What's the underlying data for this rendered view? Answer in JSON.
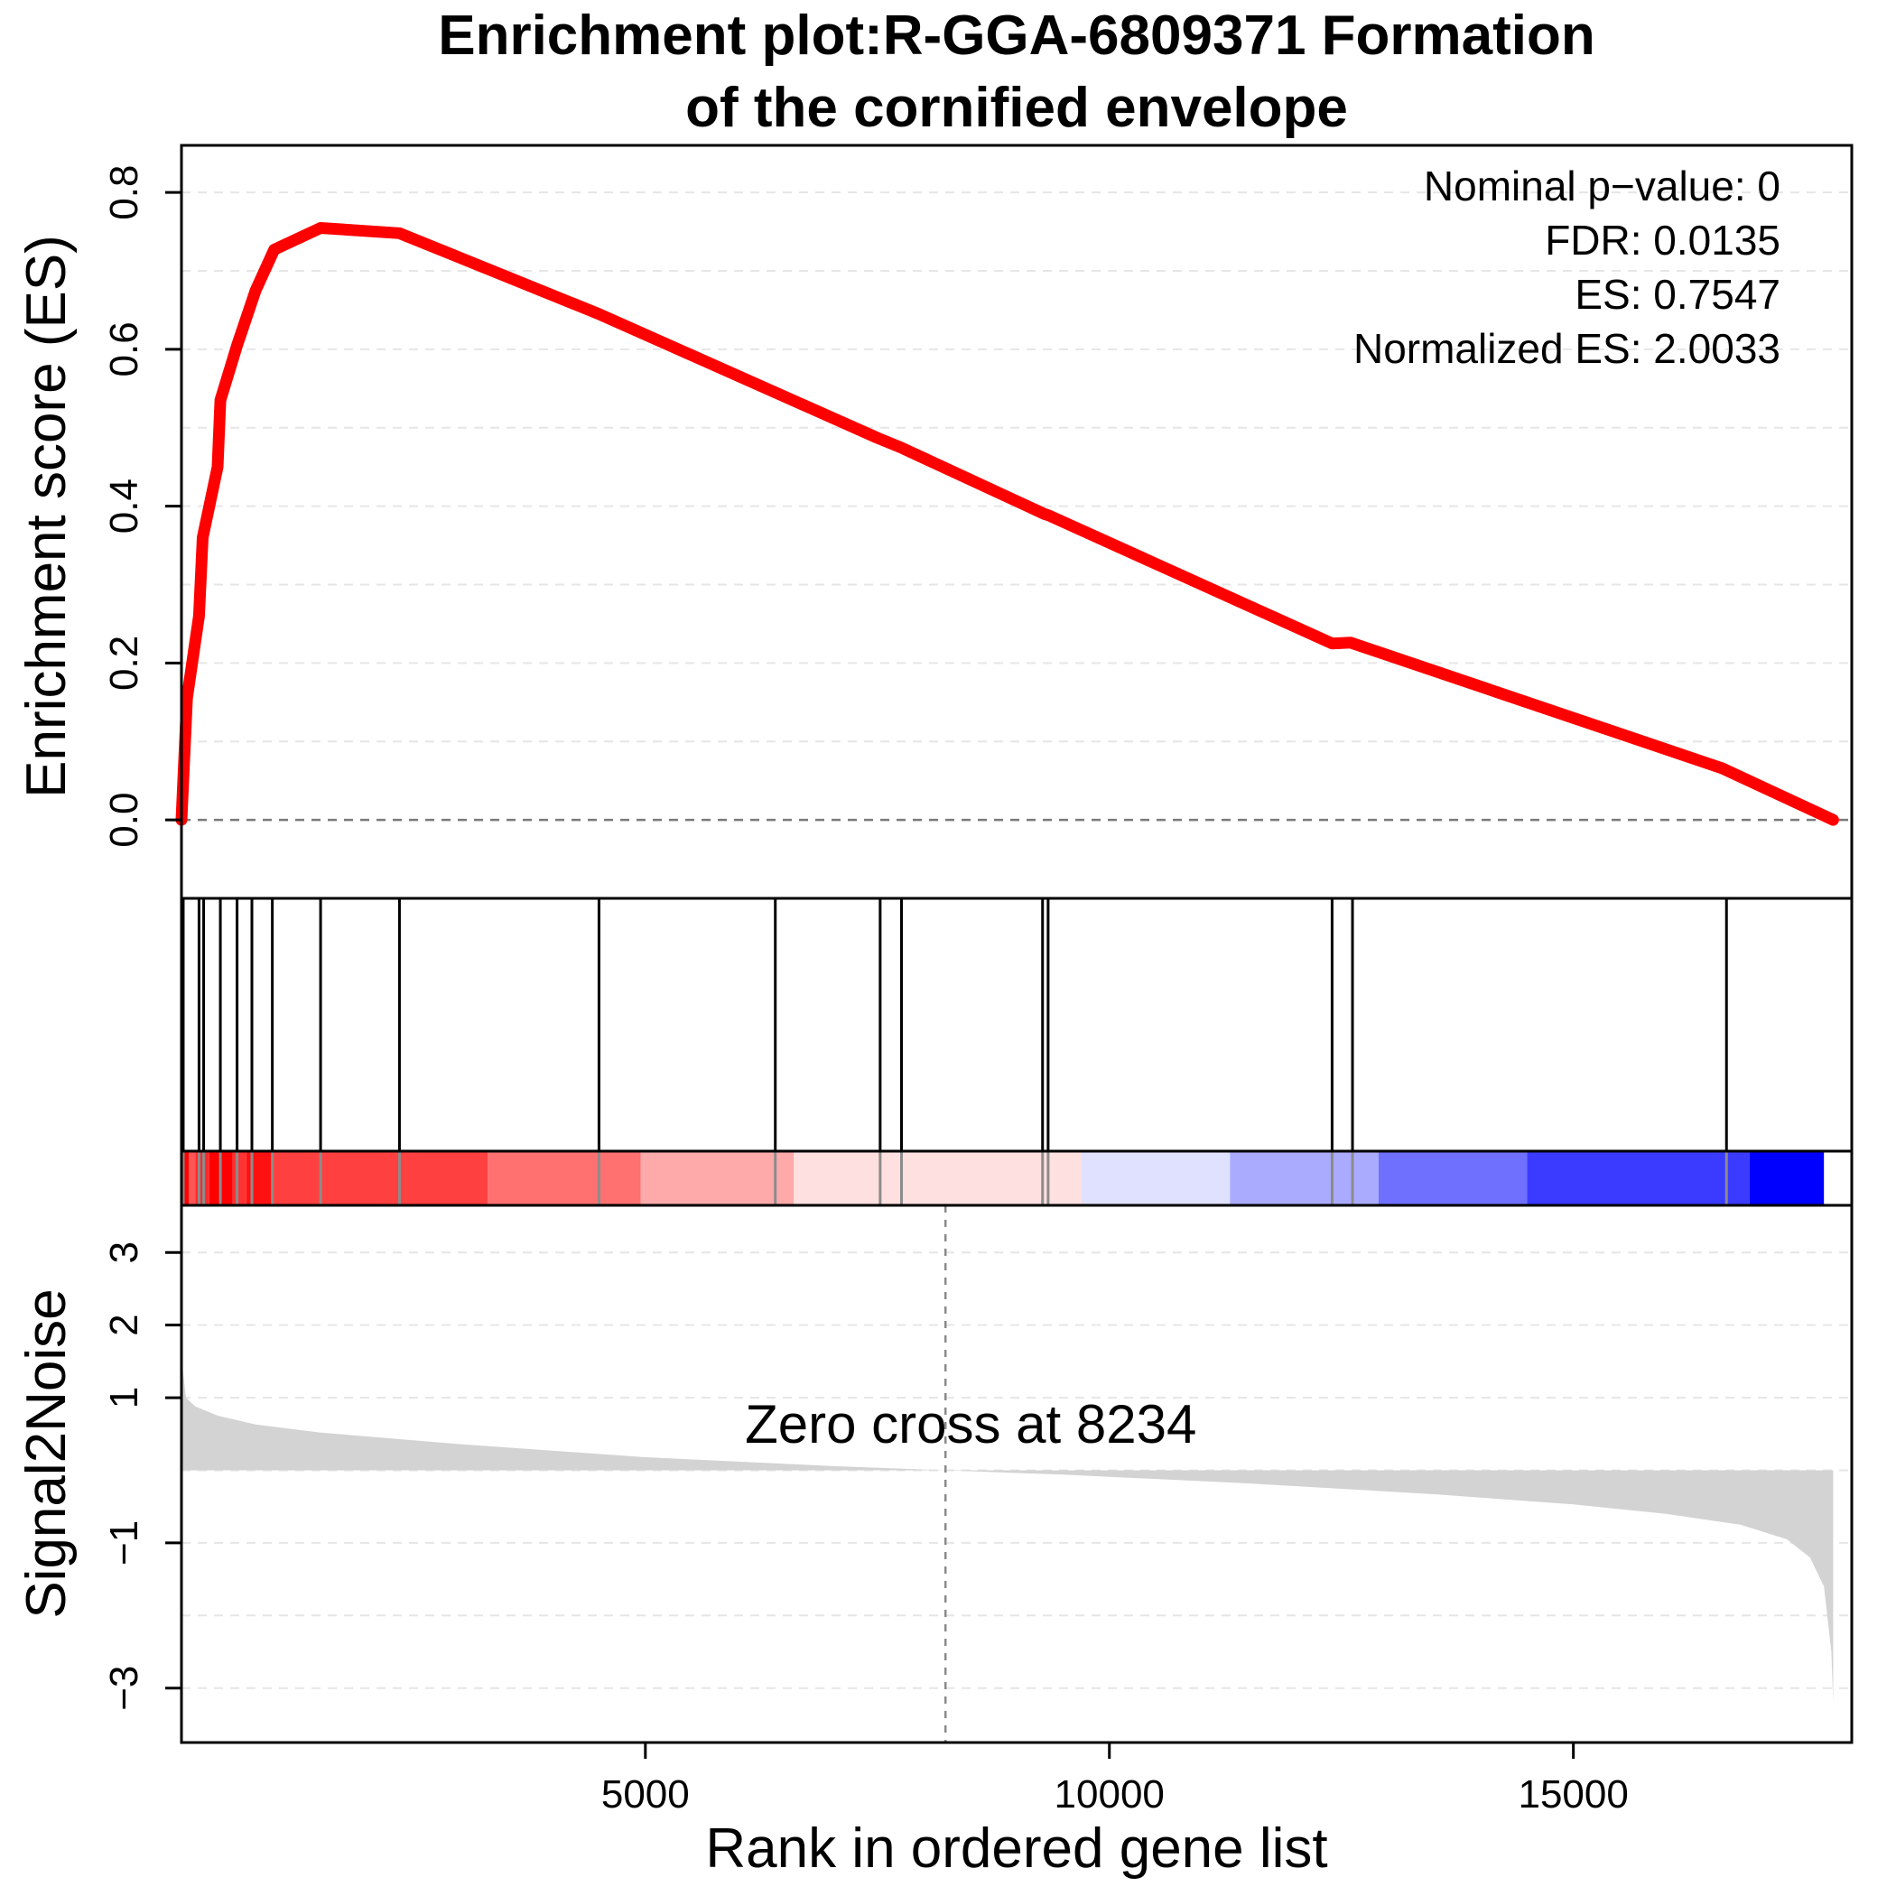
{
  "chart_data": {
    "type": "line",
    "title_lines": [
      "Enrichment plot:R-GGA-6809371 Formation",
      "of the cornified envelope"
    ],
    "stats": [
      "Nominal p−value: 0",
      "FDR: 0.0135",
      "ES: 0.7547",
      "Normalized ES: 2.0033"
    ],
    "es_panel": {
      "ylabel": "Enrichment score (ES)",
      "ylim": [
        -0.1,
        0.86
      ],
      "yticks": [
        0.0,
        0.2,
        0.4,
        0.6,
        0.8
      ],
      "ytick_labels": [
        "0.0",
        "0.2",
        "0.4",
        "0.6",
        "0.8"
      ],
      "grid": true,
      "line_color": "#ff0000",
      "es_curve": {
        "x": [
          1,
          60,
          190,
          230,
          390,
          420,
          600,
          800,
          1000,
          1500,
          2350,
          4500,
          6400,
          7500,
          7750,
          9300,
          9350,
          12400,
          12600,
          16600,
          17800
        ],
        "y": [
          0.0,
          0.155,
          0.26,
          0.36,
          0.45,
          0.535,
          0.605,
          0.675,
          0.727,
          0.7547,
          0.748,
          0.645,
          0.545,
          0.487,
          0.475,
          0.39,
          0.388,
          0.225,
          0.226,
          0.066,
          0.0
        ]
      }
    },
    "hits_panel": {
      "hit_ranks": [
        20,
        190,
        240,
        420,
        600,
        760,
        980,
        1500,
        2350,
        4500,
        6400,
        7530,
        7760,
        9280,
        9340,
        12400,
        12620,
        16650
      ],
      "colorbar": {
        "segments": [
          {
            "from": 1,
            "to": 80,
            "color": "#ff0000"
          },
          {
            "from": 80,
            "to": 150,
            "color": "#ff5555"
          },
          {
            "from": 150,
            "to": 300,
            "color": "#ff2a2a"
          },
          {
            "from": 300,
            "to": 550,
            "color": "#ff0000"
          },
          {
            "from": 550,
            "to": 700,
            "color": "#ff3333"
          },
          {
            "from": 700,
            "to": 1000,
            "color": "#ff1111"
          },
          {
            "from": 1000,
            "to": 3300,
            "color": "#ff4040"
          },
          {
            "from": 3300,
            "to": 4950,
            "color": "#ff7070"
          },
          {
            "from": 4950,
            "to": 6600,
            "color": "#ffaaaa"
          },
          {
            "from": 6600,
            "to": 9700,
            "color": "#ffe0e0"
          },
          {
            "from": 9700,
            "to": 11300,
            "color": "#e0e0ff"
          },
          {
            "from": 11300,
            "to": 12900,
            "color": "#aaaaff"
          },
          {
            "from": 12900,
            "to": 14500,
            "color": "#7070ff"
          },
          {
            "from": 14500,
            "to": 16900,
            "color": "#3b3bff"
          },
          {
            "from": 16900,
            "to": 17700,
            "color": "#0000ff"
          }
        ]
      }
    },
    "metric_panel": {
      "ylabel": "Signal2Noise",
      "xlabel": "Rank in ordered gene list",
      "ylim": [
        -3.75,
        3.65
      ],
      "yticks": [
        3,
        2,
        1,
        -1,
        -3
      ],
      "ytick_labels": [
        "3",
        "2",
        "1",
        "−1",
        "−3"
      ],
      "grid_y": [
        3,
        2,
        1,
        0,
        -1,
        -2,
        -3
      ],
      "zero_cross_rank": 8234,
      "zero_cross_label": "Zero cross at 8234",
      "fill_color": "#d3d3d3",
      "curve": {
        "x": [
          1,
          50,
          150,
          400,
          800,
          1500,
          3000,
          5000,
          7000,
          8234,
          9500,
          11500,
          13500,
          15000,
          16000,
          16800,
          17300,
          17550,
          17700,
          17780,
          17800
        ],
        "y": [
          1.55,
          1.0,
          0.88,
          0.75,
          0.63,
          0.52,
          0.36,
          0.18,
          0.06,
          0.0,
          -0.06,
          -0.18,
          -0.33,
          -0.47,
          -0.6,
          -0.75,
          -0.95,
          -1.2,
          -1.6,
          -2.5,
          -3.2
        ]
      }
    },
    "xaxis": {
      "xlim": [
        1,
        18000
      ],
      "xticks": [
        5000,
        10000,
        15000
      ],
      "xtick_labels": [
        "5000",
        "10000",
        "15000"
      ]
    }
  }
}
